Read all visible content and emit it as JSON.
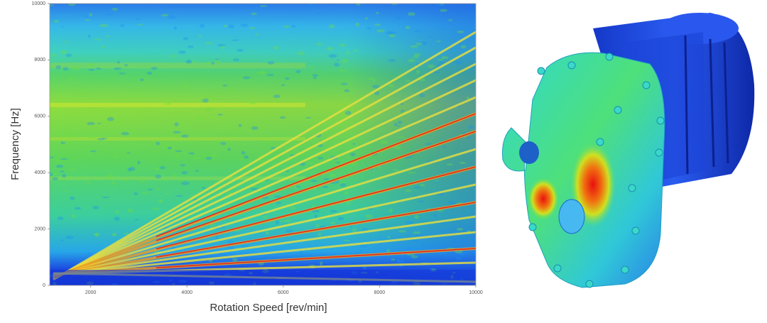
{
  "chart_data": {
    "type": "spectrogram",
    "xlabel": "Rotation Speed [rev/min]",
    "ylabel": "Frequency [Hz]",
    "xlim": [
      1150,
      10000
    ],
    "xticks": [
      2000,
      4000,
      6000,
      8000,
      10000
    ],
    "ylim": [
      0,
      10000
    ],
    "yticks": [
      0,
      2000,
      4000,
      6000,
      8000,
      10000
    ]
  }
}
